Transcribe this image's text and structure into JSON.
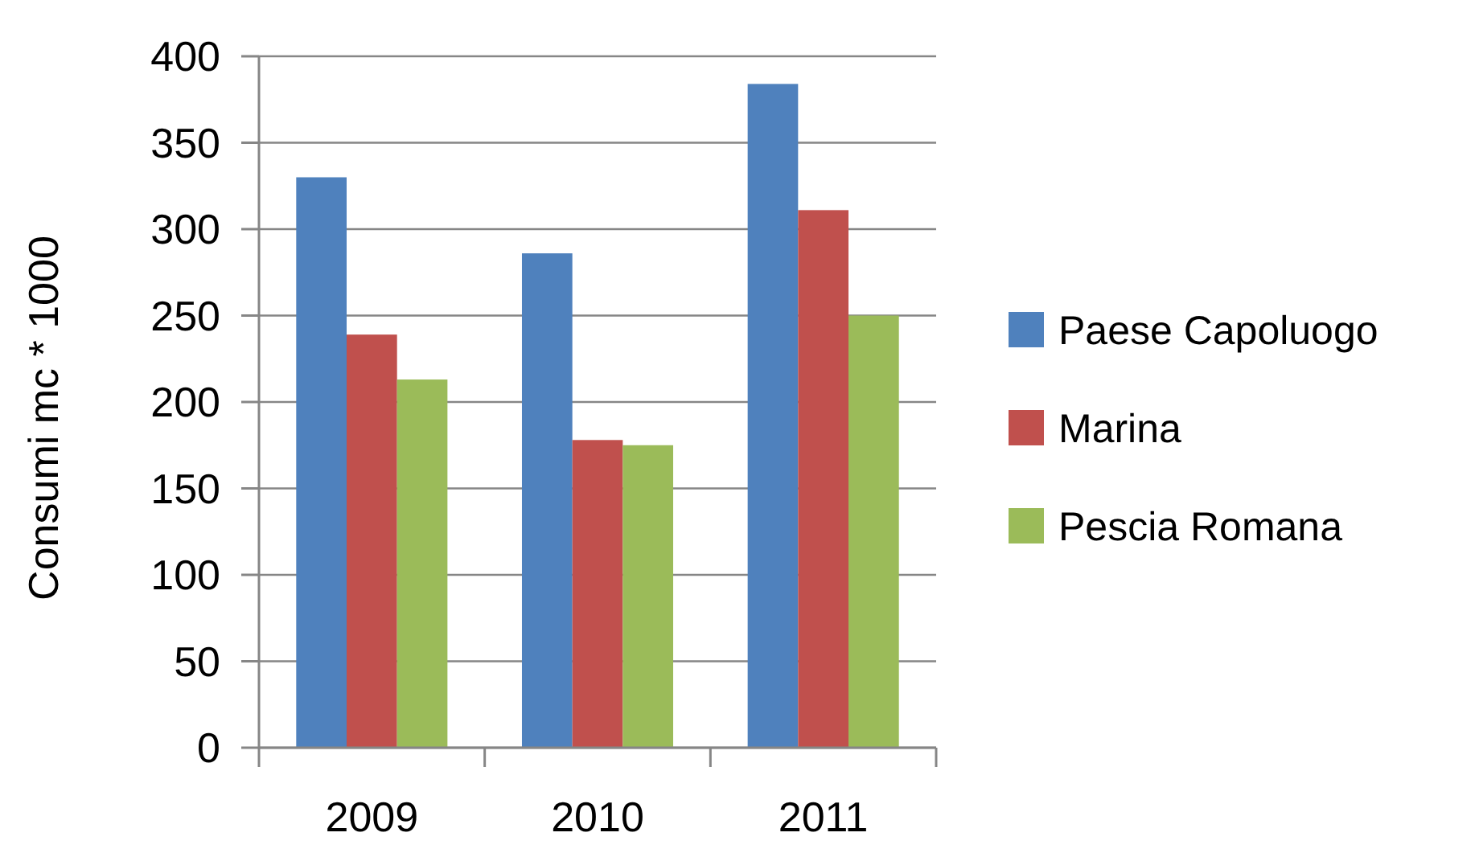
{
  "chart_data": {
    "type": "bar",
    "ylabel": "Consumi mc * 1000",
    "categories": [
      "2009",
      "2010",
      "2011"
    ],
    "series": [
      {
        "name": "Paese Capoluogo",
        "color": "#4f81bd",
        "values": [
          330,
          286,
          384
        ]
      },
      {
        "name": "Marina",
        "color": "#c0504d",
        "values": [
          239,
          178,
          311
        ]
      },
      {
        "name": "Pescia Romana",
        "color": "#9bbb59",
        "values": [
          213,
          175,
          250
        ]
      }
    ],
    "ylim": [
      0,
      400
    ],
    "yticks": [
      0,
      50,
      100,
      150,
      200,
      250,
      300,
      350,
      400
    ],
    "grid": "y",
    "legend": "right"
  }
}
